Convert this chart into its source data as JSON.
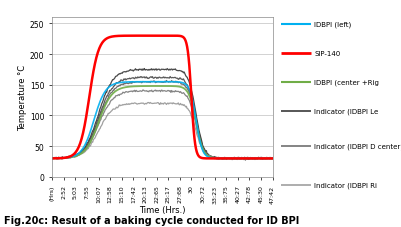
{
  "title_caption": "Fig.20c: Result of a baking cycle conducted for ID BPI",
  "ylabel": "Temperature °C",
  "xlabel": "Time (Hrs.)",
  "ylim": [
    0,
    260
  ],
  "yticks": [
    0,
    50,
    100,
    150,
    200,
    250
  ],
  "xtick_labels": [
    "(Hrs)",
    "2:52",
    "5:03",
    "7:55",
    "10:07",
    "12:58",
    "15:10",
    "17:42",
    "20:13",
    "22:65",
    "25:17",
    "27:68",
    "30",
    "30:72",
    "33:23",
    "35:75",
    "40:27",
    "42:78",
    "45:30",
    "47:42"
  ],
  "bg_color": "#ffffff",
  "plot_bg_color": "#ffffff",
  "legend_entries": [
    {
      "label": "IDBPI (left)",
      "color": "#00b0f0",
      "lw": 1.5
    },
    {
      "label": "SIP-140",
      "color": "#ff0000",
      "lw": 2.0
    },
    {
      "label": "IDBPI (center +Rig",
      "color": "#70ad47",
      "lw": 1.5
    },
    {
      "label": "Indicator (IDBPI Le",
      "color": "#595959",
      "lw": 1.2
    },
    {
      "label": "Indicator (IDBPI D center)",
      "color": "#808080",
      "lw": 1.2
    },
    {
      "label": "Indicator (IDBPI Ri",
      "color": "#a0a0a0",
      "lw": 1.2
    }
  ],
  "sip140_color": "#ff0000",
  "idbpi_left_color": "#00b0f0",
  "idbpi_center_color": "#70ad47",
  "indicator_colors": [
    "#3a3a3a",
    "#555555",
    "#808080",
    "#a0a0a0",
    "#c0c0c0"
  ],
  "grid_color": "#c0c0c0"
}
